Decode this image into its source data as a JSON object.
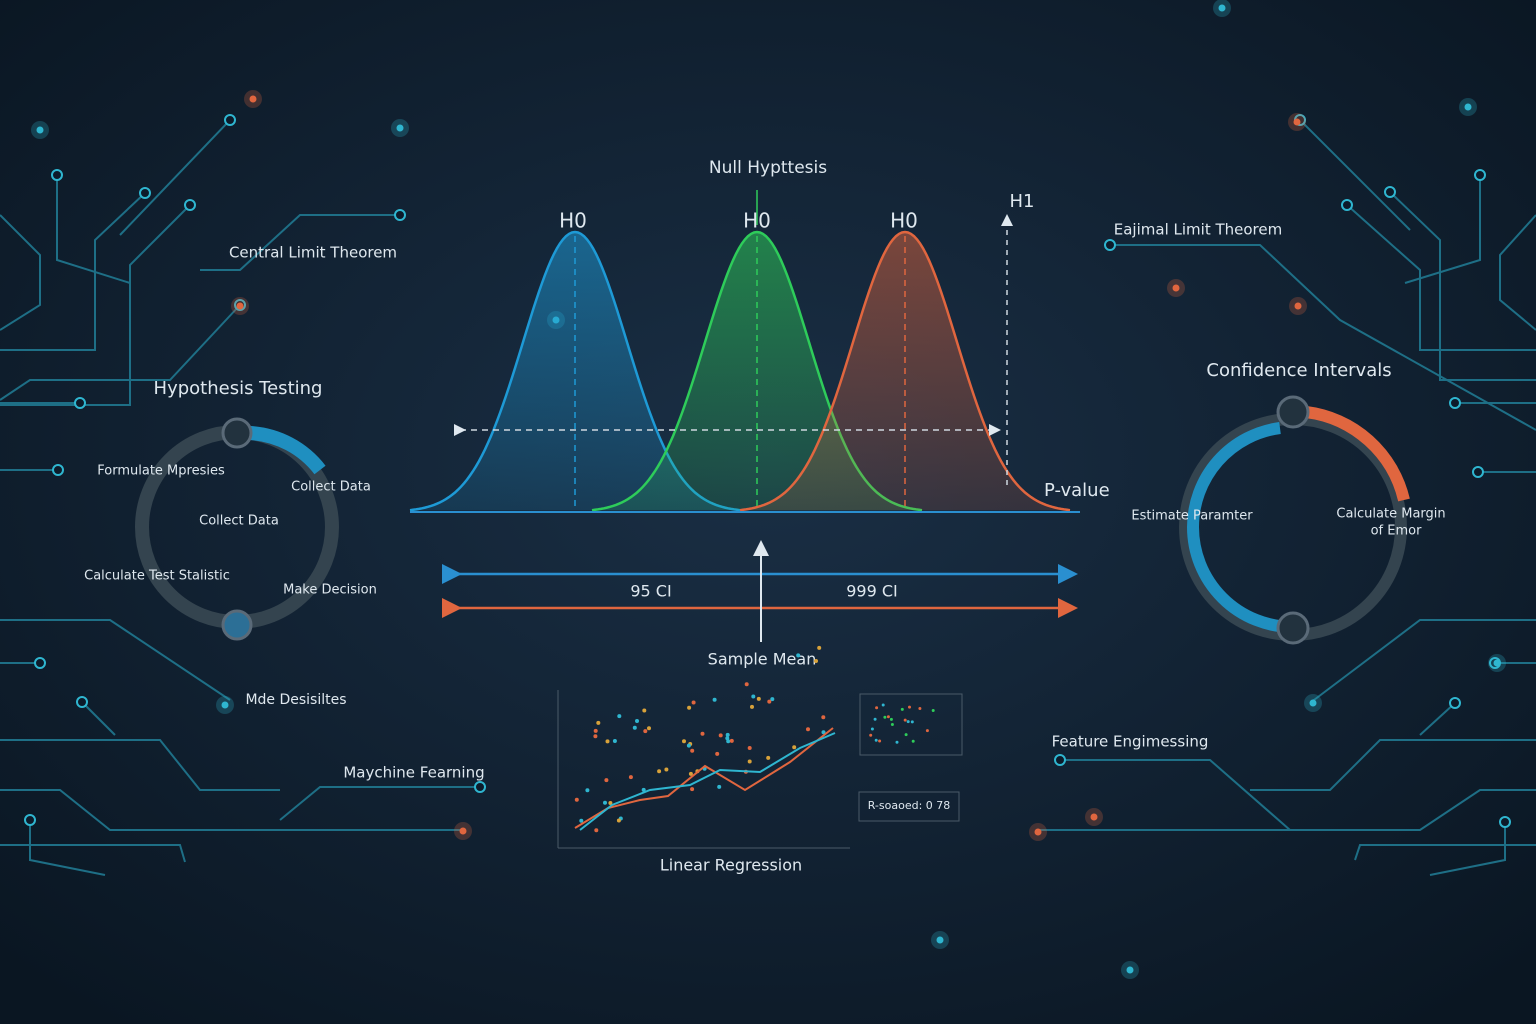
{
  "header": {
    "title": "Null Hypttesis"
  },
  "distribution": {
    "labels": [
      "H0",
      "H0",
      "H0"
    ],
    "alternative": "H1",
    "p_value": "P-value",
    "intervals": [
      "95 CI",
      "999 CI"
    ],
    "sample_mean": "Sample Mean"
  },
  "left": {
    "top_label": "Central Limit Theorem",
    "cycle_title": "Hypothesis Testing",
    "cycle_steps": [
      "Formulate Mpresies",
      "Collect Data",
      "Collect Data",
      "Calculate Test Stalistic",
      "Make Decision"
    ],
    "lower_labels": [
      "Mde Desisiltes",
      "Maychine Fearning"
    ]
  },
  "right": {
    "top_label": "Eajimal Limit Theorem",
    "cycle_title": "Confidence Intervals",
    "cycle_steps": [
      "Estimate Paramter",
      "Calculate Margin",
      "of Emor"
    ],
    "lower_label": "Feature Engimessing"
  },
  "regression": {
    "title": "Linear Regression",
    "r_squared": "R-soaoed: 0 78"
  }
}
